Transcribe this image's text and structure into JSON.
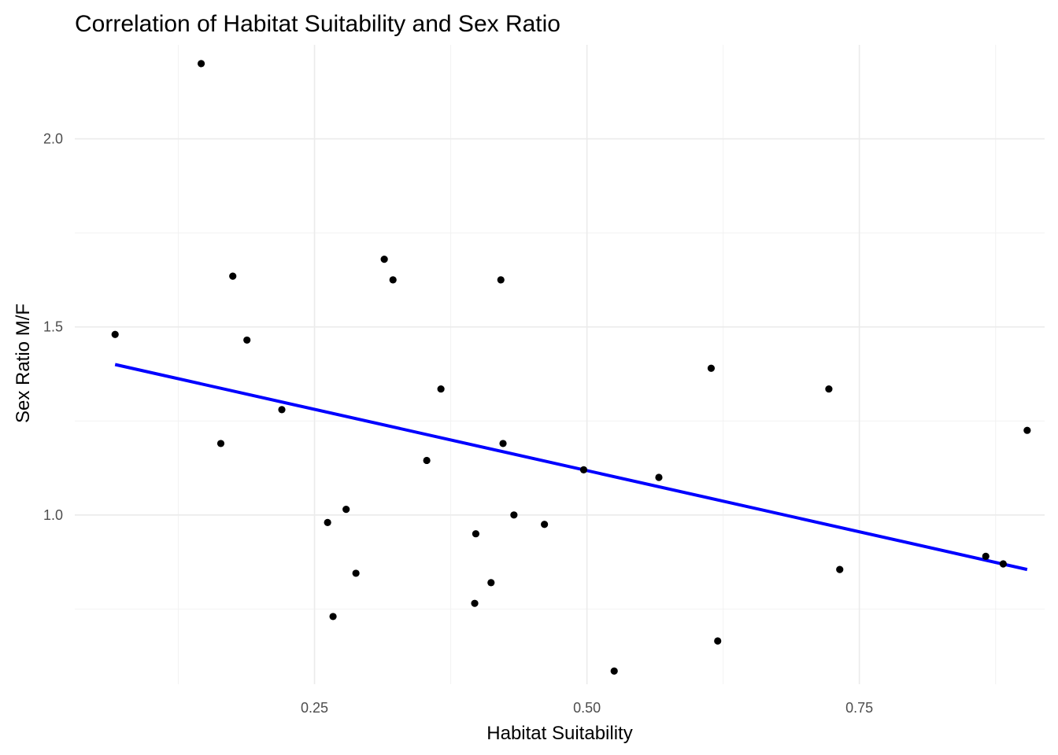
{
  "chart_data": {
    "type": "scatter",
    "title": "Correlation of Habitat Suitability and Sex Ratio",
    "xlabel": "Habitat Suitability",
    "ylabel": "Sex Ratio M/F",
    "xlim": [
      0.03,
      0.92
    ],
    "ylim": [
      0.55,
      2.25
    ],
    "x_ticks": [
      0.25,
      0.5,
      0.75
    ],
    "x_tick_labels": [
      "0.25",
      "0.50",
      "0.75"
    ],
    "x_minor_ticks": [
      0.125,
      0.375,
      0.625,
      0.875
    ],
    "y_ticks": [
      1.0,
      1.5,
      2.0
    ],
    "y_tick_labels": [
      "1.0",
      "1.5",
      "2.0"
    ],
    "y_minor_ticks": [
      0.75,
      1.25,
      1.75
    ],
    "grid": true,
    "point_color": "#000000",
    "points": [
      {
        "x": 0.067,
        "y": 1.48
      },
      {
        "x": 0.146,
        "y": 2.2
      },
      {
        "x": 0.175,
        "y": 1.635
      },
      {
        "x": 0.164,
        "y": 1.19
      },
      {
        "x": 0.188,
        "y": 1.465
      },
      {
        "x": 0.22,
        "y": 1.28
      },
      {
        "x": 0.262,
        "y": 0.98
      },
      {
        "x": 0.267,
        "y": 0.73
      },
      {
        "x": 0.279,
        "y": 1.015
      },
      {
        "x": 0.288,
        "y": 0.845
      },
      {
        "x": 0.314,
        "y": 1.68
      },
      {
        "x": 0.322,
        "y": 1.625
      },
      {
        "x": 0.353,
        "y": 1.145
      },
      {
        "x": 0.366,
        "y": 1.335
      },
      {
        "x": 0.397,
        "y": 0.765
      },
      {
        "x": 0.398,
        "y": 0.95
      },
      {
        "x": 0.412,
        "y": 0.82
      },
      {
        "x": 0.421,
        "y": 1.625
      },
      {
        "x": 0.423,
        "y": 1.19
      },
      {
        "x": 0.433,
        "y": 1.0
      },
      {
        "x": 0.461,
        "y": 0.975
      },
      {
        "x": 0.497,
        "y": 1.12
      },
      {
        "x": 0.525,
        "y": 0.585
      },
      {
        "x": 0.566,
        "y": 1.1
      },
      {
        "x": 0.614,
        "y": 1.39
      },
      {
        "x": 0.62,
        "y": 0.665
      },
      {
        "x": 0.722,
        "y": 1.335
      },
      {
        "x": 0.732,
        "y": 0.855
      },
      {
        "x": 0.866,
        "y": 0.89
      },
      {
        "x": 0.882,
        "y": 0.87
      },
      {
        "x": 0.904,
        "y": 1.225
      }
    ],
    "trend_line": {
      "type": "linear",
      "color": "#0000ff",
      "x": [
        0.067,
        0.904
      ],
      "y": [
        1.4,
        0.855
      ]
    }
  }
}
